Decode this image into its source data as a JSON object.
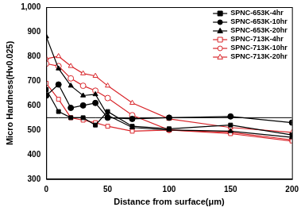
{
  "chart_data": {
    "type": "line",
    "x_label": "Distance from surface(μm)",
    "y_label": "Micro Hardness(Hv0.025)",
    "x": [
      0,
      10,
      20,
      30,
      40,
      50,
      70,
      100,
      150,
      200
    ],
    "xlim": [
      0,
      200
    ],
    "xticks": [
      0,
      50,
      100,
      150,
      200
    ],
    "ylim": [
      300,
      1000
    ],
    "yticks": [
      300,
      400,
      500,
      600,
      700,
      800,
      900,
      1000
    ],
    "grid": false,
    "legend": "upper right",
    "series": [
      {
        "name": "SPNC-653K-4hr",
        "color": "#000000",
        "marker": "square",
        "line_style": "solid",
        "values": [
          665,
          575,
          550,
          550,
          520,
          575,
          515,
          505,
          520,
          480
        ]
      },
      {
        "name": "SPNC-653K-10hr",
        "color": "#000000",
        "marker": "circle",
        "line_style": "solid",
        "values": [
          640,
          685,
          590,
          600,
          610,
          550,
          545,
          550,
          555,
          530
        ]
      },
      {
        "name": "SPNC-653K-20hr",
        "color": "#000000",
        "marker": "triangle",
        "line_style": "solid",
        "values": [
          880,
          750,
          680,
          640,
          645,
          560,
          510,
          500,
          495,
          470
        ]
      },
      {
        "name": "SPNC-713K-4hr",
        "color": "#d9262b",
        "marker": "square-open",
        "line_style": "solid",
        "values": [
          690,
          625,
          550,
          540,
          530,
          515,
          495,
          500,
          485,
          455
        ]
      },
      {
        "name": "SPNC-713K-10hr",
        "color": "#d9262b",
        "marker": "circle-open",
        "line_style": "solid",
        "values": [
          770,
          760,
          710,
          680,
          660,
          630,
          560,
          500,
          490,
          460
        ]
      },
      {
        "name": "SPNC-713K-20hr",
        "color": "#d9262b",
        "marker": "triangle-open",
        "line_style": "solid",
        "values": [
          790,
          800,
          760,
          730,
          720,
          680,
          610,
          545,
          510,
          490
        ]
      },
      {
        "color": "#000000",
        "marker": "none",
        "line_style": "solid",
        "values": [
          550,
          550,
          550,
          550,
          550,
          550,
          550,
          550,
          550,
          550
        ]
      }
    ]
  }
}
